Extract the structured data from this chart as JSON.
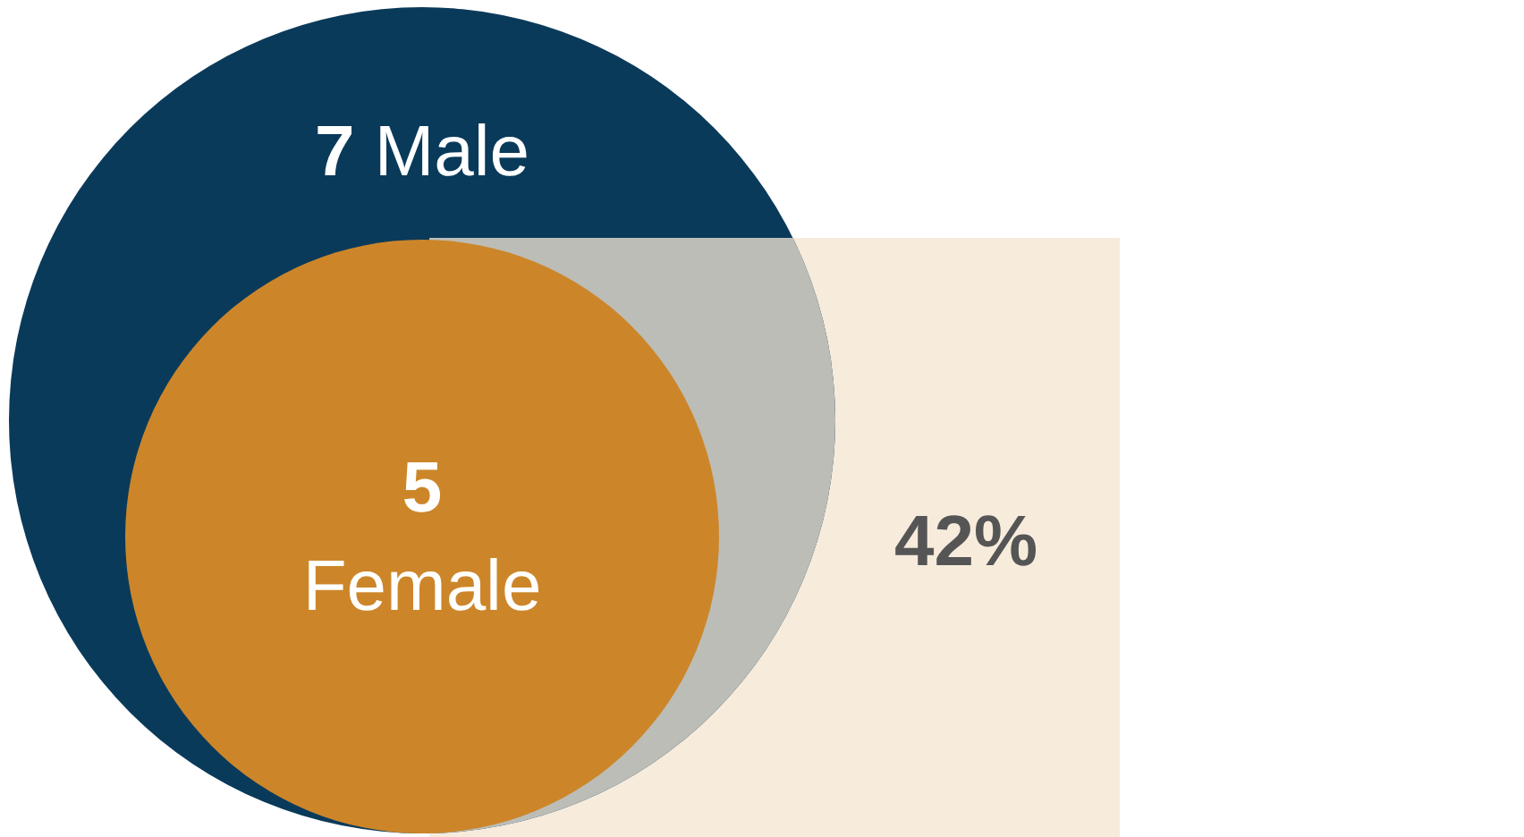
{
  "chart_data": {
    "type": "other",
    "categories": [
      "Male",
      "Female"
    ],
    "values": [
      7,
      5
    ],
    "colors": [
      "#0a3a5a",
      "#cc8629"
    ],
    "annotations": [
      "42%"
    ],
    "data_labels": true
  }
}
